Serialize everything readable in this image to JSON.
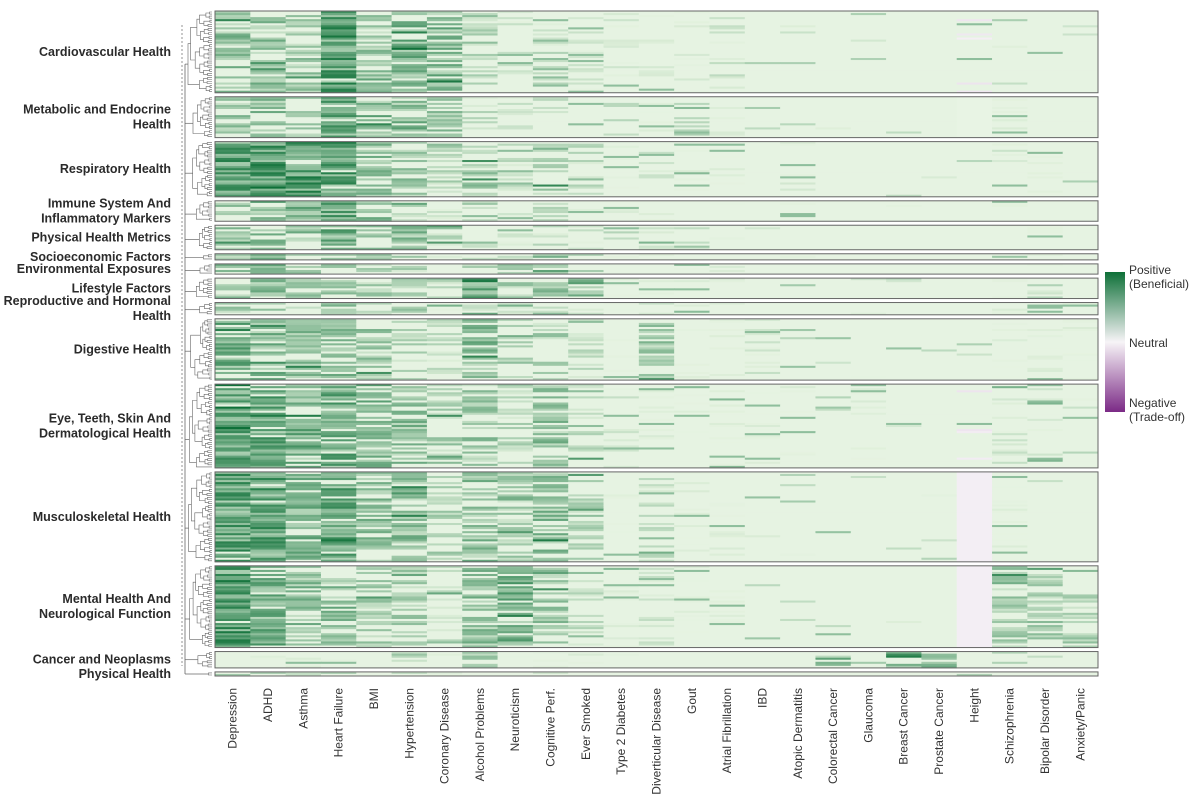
{
  "chart_data": {
    "type": "heatmap",
    "title": "",
    "colors": {
      "positive": "#0e7038",
      "neutral": "#f7f4f7",
      "negative": "#7b2a86",
      "frame": "#666666",
      "dendrogram": "#666666"
    },
    "legend": {
      "position": "right",
      "labels": [
        {
          "key": "positive",
          "text": "Positive\n(Beneficial)"
        },
        {
          "key": "neutral",
          "text": "Neutral"
        },
        {
          "key": "negative",
          "text": "Negative\n(Trade-off)"
        }
      ]
    },
    "columns": [
      "Depression",
      "ADHD",
      "Asthma",
      "Heart Failure",
      "BMI",
      "Hypertension",
      "Coronary Disease",
      "Alcohol Problems",
      "Neuroticism",
      "Cognitive Perf.",
      "Ever Smoked",
      "Type 2 Diabetes",
      "Diverticular Disease",
      "Gout",
      "Atrial Fibrillation",
      "IBD",
      "Atopic Dermatitis",
      "Colorectal Cancer",
      "Glaucoma",
      "Breast Cancer",
      "Prostate Cancer",
      "Height",
      "Schizophrenia",
      "Bipolar Disorder",
      "Anxiety/Panic"
    ],
    "value_range": [
      -1,
      1
    ],
    "groups": [
      {
        "label": "Cardiovascular Health",
        "rows": 40,
        "profile": [
          0.35,
          0.35,
          0.3,
          0.6,
          0.3,
          0.45,
          0.4,
          0.2,
          0.1,
          0.15,
          0.1,
          0.08,
          0.06,
          0.08,
          0.12,
          0.02,
          0.02,
          0.02,
          0.02,
          0.02,
          0.02,
          -0.05,
          0.02,
          0.02,
          0.02
        ]
      },
      {
        "label": "Metabolic and Endocrine\nHealth",
        "rows": 20,
        "profile": [
          0.3,
          0.35,
          0.25,
          0.5,
          0.4,
          0.4,
          0.3,
          0.15,
          0.1,
          0.15,
          0.05,
          0.15,
          0.05,
          0.25,
          0.05,
          0.02,
          0.02,
          0.02,
          0.02,
          0.02,
          0.02,
          0.0,
          0.05,
          0.02,
          0.02
        ]
      },
      {
        "label": "Respiratory Health",
        "rows": 27,
        "profile": [
          0.55,
          0.6,
          0.6,
          0.55,
          0.35,
          0.3,
          0.25,
          0.3,
          0.15,
          0.3,
          0.15,
          0.05,
          0.1,
          0.05,
          0.05,
          0.02,
          0.08,
          0.02,
          0.02,
          0.02,
          0.02,
          0.02,
          0.08,
          0.04,
          0.02
        ]
      },
      {
        "label": "Immune System And\nInflammatory Markers",
        "rows": 10,
        "profile": [
          0.3,
          0.35,
          0.45,
          0.5,
          0.35,
          0.2,
          0.1,
          0.2,
          0.1,
          0.15,
          0.05,
          0.05,
          0.05,
          0.05,
          0.05,
          0.02,
          0.05,
          0.02,
          0.02,
          0.02,
          0.02,
          0.02,
          0.05,
          0.02,
          0.02
        ]
      },
      {
        "label": "Physical Health Metrics",
        "rows": 12,
        "profile": [
          0.3,
          0.35,
          0.35,
          0.45,
          0.3,
          0.35,
          0.2,
          0.15,
          0.1,
          0.15,
          0.1,
          0.15,
          0.15,
          0.2,
          0.08,
          0.02,
          0.02,
          0.02,
          0.02,
          0.02,
          0.02,
          0.02,
          0.05,
          0.04,
          0.02
        ]
      },
      {
        "label": "Socioeconomic Factors",
        "rows": 3,
        "profile": [
          0.3,
          0.35,
          0.3,
          0.3,
          0.25,
          0.2,
          0.1,
          0.2,
          0.2,
          0.3,
          0.2,
          0.05,
          0.05,
          0.05,
          0.05,
          0.02,
          0.02,
          0.02,
          0.02,
          0.02,
          0.02,
          0.02,
          0.2,
          0.05,
          0.02
        ]
      },
      {
        "label": "Environmental Exposures",
        "rows": 5,
        "profile": [
          0.35,
          0.5,
          0.3,
          0.3,
          0.2,
          0.2,
          0.1,
          0.2,
          0.25,
          0.4,
          0.2,
          0.05,
          0.05,
          0.05,
          0.05,
          0.02,
          0.02,
          0.02,
          0.02,
          0.02,
          0.02,
          0.02,
          0.05,
          0.05,
          0.02
        ]
      },
      {
        "label": "Lifestyle Factors",
        "rows": 10,
        "profile": [
          0.3,
          0.35,
          0.3,
          0.35,
          0.25,
          0.25,
          0.15,
          0.55,
          0.2,
          0.35,
          0.4,
          0.05,
          0.05,
          0.05,
          0.05,
          0.02,
          0.02,
          0.02,
          0.02,
          0.02,
          0.02,
          0.02,
          0.1,
          0.15,
          0.02
        ]
      },
      {
        "label": "Reproductive and Hormonal\nHealth",
        "rows": 6,
        "profile": [
          0.3,
          0.3,
          0.25,
          0.3,
          0.2,
          0.2,
          0.1,
          0.2,
          0.1,
          0.15,
          0.1,
          0.05,
          0.1,
          0.05,
          0.05,
          0.02,
          0.02,
          0.02,
          0.02,
          0.02,
          0.02,
          0.02,
          0.05,
          0.05,
          0.05
        ]
      },
      {
        "label": "Digestive Health",
        "rows": 30,
        "profile": [
          0.45,
          0.4,
          0.4,
          0.35,
          0.3,
          0.2,
          0.15,
          0.4,
          0.2,
          0.2,
          0.15,
          0.05,
          0.3,
          0.05,
          0.05,
          0.1,
          0.02,
          0.02,
          0.02,
          0.02,
          0.02,
          0.02,
          0.05,
          0.05,
          0.05
        ]
      },
      {
        "label": "Eye, Teeth, Skin And\nDermatological Health",
        "rows": 41,
        "profile": [
          0.5,
          0.5,
          0.45,
          0.5,
          0.4,
          0.35,
          0.25,
          0.3,
          0.2,
          0.3,
          0.2,
          0.1,
          0.05,
          0.05,
          0.05,
          0.05,
          0.05,
          0.02,
          0.05,
          0.02,
          0.02,
          -0.05,
          0.1,
          0.08,
          0.02
        ]
      },
      {
        "label": "Musculoskeletal Health",
        "rows": 44,
        "profile": [
          0.55,
          0.55,
          0.45,
          0.5,
          0.35,
          0.35,
          0.25,
          0.35,
          0.25,
          0.35,
          0.2,
          0.05,
          0.15,
          0.05,
          0.05,
          0.02,
          0.02,
          0.02,
          0.02,
          0.02,
          0.02,
          -0.03,
          0.05,
          0.02,
          0.02
        ]
      },
      {
        "label": "Mental Health And\nNeurological Function",
        "rows": 40,
        "profile": [
          0.6,
          0.45,
          0.35,
          0.35,
          0.25,
          0.25,
          0.15,
          0.35,
          0.45,
          0.3,
          0.15,
          0.05,
          0.1,
          0.05,
          0.05,
          0.02,
          0.02,
          0.02,
          0.02,
          0.02,
          0.02,
          -0.03,
          0.3,
          0.25,
          0.25
        ]
      },
      {
        "label": "Cancer and Neoplasms",
        "rows": 8,
        "profile": [
          0.05,
          0.05,
          0.05,
          0.05,
          0.05,
          0.2,
          0.05,
          0.35,
          0.05,
          0.05,
          0.05,
          0.02,
          0.02,
          0.02,
          0.02,
          0.02,
          0.02,
          0.4,
          0.02,
          0.4,
          0.35,
          0.02,
          0.02,
          0.02,
          0.02
        ]
      },
      {
        "label": "Physical Health",
        "rows": 2,
        "profile": [
          0.2,
          0.2,
          0.2,
          0.2,
          0.2,
          0.15,
          0.1,
          0.1,
          0.1,
          0.1,
          0.05,
          0.05,
          0.05,
          0.05,
          0.05,
          0.02,
          0.02,
          0.02,
          0.02,
          0.02,
          0.02,
          0.3,
          0.05,
          0.02,
          0.02
        ]
      }
    ]
  }
}
